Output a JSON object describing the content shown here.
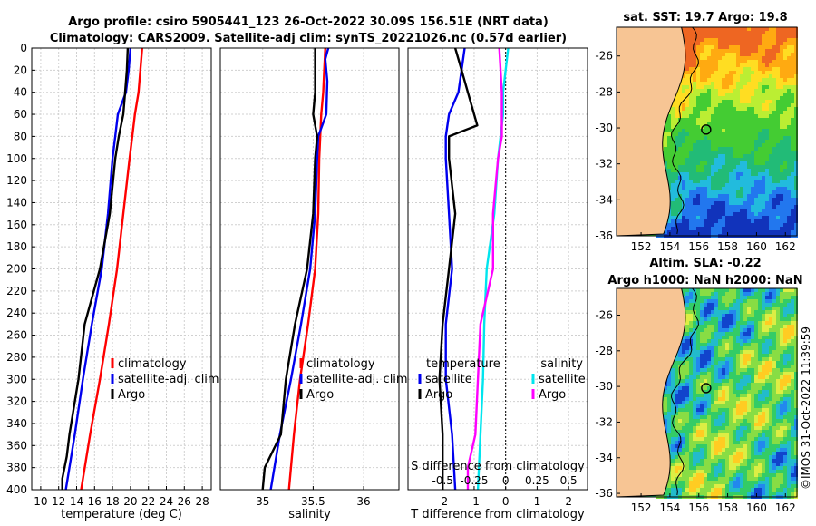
{
  "header": {
    "line1": "Argo profile: csiro 5905441_123 26-Oct-2022 30.09S 156.51E (NRT data)",
    "line2": "Climatology: CARS2009. Satellite-adj clim: synTS_20221026.nc (0.57d earlier)"
  },
  "colors": {
    "climatology": "#ff0000",
    "satellite": "#0000ee",
    "argo": "#000000",
    "sal_sat": "#00e5ee",
    "sal_argo": "#ff00ff",
    "land": "#f7c594"
  },
  "chart_data": [
    {
      "id": "temperature",
      "type": "line",
      "xlabel": "temperature (deg C)",
      "ylabel": "",
      "xlim": [
        9,
        29
      ],
      "ylim": [
        400,
        0
      ],
      "xticks": [
        "10",
        "12",
        "14",
        "16",
        "18",
        "20",
        "22",
        "24",
        "26",
        "28"
      ],
      "yticks": [
        "0",
        "20",
        "40",
        "60",
        "80",
        "100",
        "120",
        "140",
        "160",
        "180",
        "200",
        "220",
        "240",
        "260",
        "280",
        "300",
        "320",
        "340",
        "360",
        "380",
        "400"
      ],
      "legend": [
        "climatology",
        "satellite-adj. clim",
        "Argo"
      ],
      "series": [
        {
          "name": "climatology",
          "depth": [
            0,
            20,
            40,
            60,
            80,
            100,
            150,
            200,
            250,
            300,
            350,
            400
          ],
          "values": [
            21.3,
            21.1,
            20.9,
            20.5,
            20.2,
            19.9,
            19.2,
            18.5,
            17.6,
            16.6,
            15.5,
            14.5
          ]
        },
        {
          "name": "satellite-adj. clim",
          "depth": [
            0,
            20,
            40,
            60,
            80,
            100,
            150,
            200,
            250,
            300,
            350,
            400
          ],
          "values": [
            20.0,
            19.8,
            19.5,
            18.6,
            18.3,
            18.0,
            17.5,
            16.8,
            15.7,
            14.7,
            13.8,
            12.8
          ]
        },
        {
          "name": "Argo",
          "depth": [
            0,
            20,
            40,
            60,
            80,
            100,
            150,
            200,
            250,
            300,
            350,
            370,
            390,
            400
          ],
          "values": [
            19.7,
            19.6,
            19.4,
            19.2,
            18.7,
            18.3,
            17.7,
            16.6,
            14.9,
            14.2,
            13.2,
            12.9,
            12.4,
            12.4
          ]
        }
      ]
    },
    {
      "id": "salinity",
      "type": "line",
      "xlabel": "salinity",
      "ylabel": "",
      "xlim": [
        34.58,
        36.35
      ],
      "ylim": [
        400,
        0
      ],
      "xticks": [
        "35",
        "35.5",
        "36"
      ],
      "legend": [
        "climatology",
        "satellite-adj. clim",
        "Argo"
      ],
      "series": [
        {
          "name": "climatology",
          "depth": [
            0,
            20,
            40,
            60,
            80,
            100,
            150,
            200,
            250,
            300,
            350,
            400
          ],
          "values": [
            35.62,
            35.61,
            35.6,
            35.58,
            35.57,
            35.56,
            35.55,
            35.52,
            35.45,
            35.37,
            35.31,
            35.26
          ]
        },
        {
          "name": "satellite-adj. clim",
          "depth": [
            0,
            10,
            30,
            60,
            80,
            100,
            150,
            200,
            250,
            300,
            350,
            400
          ],
          "values": [
            35.65,
            35.62,
            35.64,
            35.63,
            35.55,
            35.54,
            35.52,
            35.47,
            35.38,
            35.28,
            35.17,
            35.08
          ]
        },
        {
          "name": "Argo",
          "depth": [
            0,
            20,
            40,
            60,
            80,
            100,
            150,
            200,
            250,
            300,
            350,
            380,
            400
          ],
          "values": [
            35.52,
            35.52,
            35.52,
            35.5,
            35.54,
            35.52,
            35.5,
            35.44,
            35.32,
            35.23,
            35.18,
            35.02,
            35.0
          ]
        }
      ]
    },
    {
      "id": "difference",
      "type": "line",
      "xlabel": "T difference from climatology",
      "x2label": "S difference from climatology",
      "xlim": [
        -3.1,
        2.6
      ],
      "ylim": [
        400,
        0
      ],
      "xticks": [
        "-2",
        "-1",
        "0",
        "1",
        "2"
      ],
      "x2ticks": [
        "-0.5",
        "-0.25",
        "0",
        "0.25",
        "0.5"
      ],
      "legend_temp_title": "temperature",
      "legend_sal_title": "salinity",
      "legend_temp": [
        "satellite",
        "Argo"
      ],
      "legend_sal": [
        "satellite",
        "Argo"
      ],
      "series": [
        {
          "name": "T satellite",
          "depth": [
            0,
            20,
            40,
            60,
            80,
            100,
            150,
            200,
            250,
            300,
            350,
            400
          ],
          "values": [
            -1.3,
            -1.4,
            -1.5,
            -1.8,
            -1.9,
            -1.9,
            -1.8,
            -1.7,
            -1.9,
            -1.9,
            -1.7,
            -1.6
          ]
        },
        {
          "name": "T Argo",
          "depth": [
            0,
            20,
            40,
            60,
            70,
            80,
            100,
            150,
            200,
            250,
            300,
            350,
            400
          ],
          "values": [
            -1.6,
            -1.4,
            -1.2,
            -1.0,
            -0.9,
            -1.8,
            -1.8,
            -1.6,
            -1.8,
            -2.0,
            -2.1,
            -2.0,
            -2.0
          ]
        },
        {
          "name": "S satellite",
          "depth": [
            0,
            20,
            40,
            60,
            80,
            100,
            150,
            200,
            250,
            300,
            350,
            400
          ],
          "values": [
            0.02,
            0.0,
            -0.02,
            -0.02,
            -0.04,
            -0.06,
            -0.09,
            -0.15,
            -0.17,
            -0.18,
            -0.2,
            -0.22
          ]
        },
        {
          "name": "S Argo",
          "depth": [
            0,
            20,
            40,
            60,
            80,
            100,
            150,
            200,
            250,
            300,
            350,
            380,
            400
          ],
          "values": [
            -0.05,
            -0.04,
            -0.03,
            -0.03,
            -0.03,
            -0.06,
            -0.1,
            -0.1,
            -0.2,
            -0.22,
            -0.24,
            -0.3,
            -0.3
          ]
        }
      ]
    },
    {
      "id": "sst_map",
      "type": "heatmap",
      "title": "sat. SST: 19.7 Argo: 19.8",
      "xticks": [
        "152",
        "154",
        "156",
        "158",
        "160",
        "162"
      ],
      "yticks": [
        "-26",
        "-28",
        "-30",
        "-32",
        "-34",
        "-36"
      ],
      "lon_range": [
        150.3,
        162.8
      ],
      "lat_range": [
        -36,
        -24.4
      ],
      "float_position": {
        "lon": 156.51,
        "lat": -30.09
      }
    },
    {
      "id": "sla_map",
      "type": "heatmap",
      "title": "Altim. SLA: -0.22",
      "subtitle": "Argo h1000: NaN h2000: NaN",
      "xticks": [
        "152",
        "154",
        "156",
        "158",
        "160",
        "162"
      ],
      "yticks": [
        "-26",
        "-28",
        "-30",
        "-32",
        "-34",
        "-36"
      ],
      "lon_range": [
        150.3,
        162.8
      ],
      "lat_range": [
        -36.2,
        -24.5
      ],
      "float_position": {
        "lon": 156.51,
        "lat": -30.09
      }
    }
  ],
  "stamp": "©IMOS 31-Oct-2022 11:39:59"
}
